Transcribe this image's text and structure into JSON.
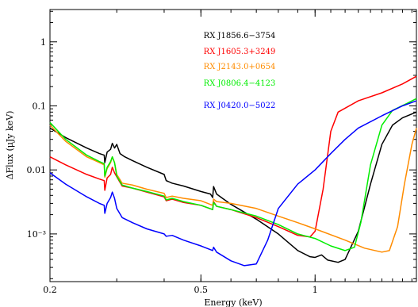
{
  "chart_data": {
    "type": "line",
    "title": "",
    "xlabel": "Energy (keV)",
    "ylabel": "ΔFlux (μJy keV)",
    "xscale": "log",
    "yscale": "log",
    "xlim": [
      0.2,
      1.85
    ],
    "ylim": [
      0.00018,
      3.2
    ],
    "x_ticks": [
      {
        "value": 0.2,
        "label": "0.2"
      },
      {
        "value": 0.5,
        "label": "0.5"
      },
      {
        "value": 1,
        "label": "1"
      }
    ],
    "y_ticks": [
      {
        "value": 0.001,
        "label": "10⁻³"
      },
      {
        "value": 0.01,
        "label": "0.01"
      },
      {
        "value": 0.1,
        "label": "0.1"
      },
      {
        "value": 1,
        "label": "1"
      }
    ],
    "legend_position": "top-center",
    "series": [
      {
        "name": "RX J1856.6−3754",
        "color": "#000000",
        "points": [
          [
            0.2,
            0.045
          ],
          [
            0.22,
            0.032
          ],
          [
            0.25,
            0.022
          ],
          [
            0.27,
            0.018
          ],
          [
            0.278,
            0.017
          ],
          [
            0.279,
            0.013
          ],
          [
            0.283,
            0.019
          ],
          [
            0.289,
            0.021
          ],
          [
            0.292,
            0.026
          ],
          [
            0.296,
            0.022
          ],
          [
            0.3,
            0.025
          ],
          [
            0.306,
            0.018
          ],
          [
            0.315,
            0.016
          ],
          [
            0.33,
            0.014
          ],
          [
            0.36,
            0.011
          ],
          [
            0.4,
            0.0085
          ],
          [
            0.405,
            0.0068
          ],
          [
            0.41,
            0.0066
          ],
          [
            0.42,
            0.0062
          ],
          [
            0.45,
            0.0056
          ],
          [
            0.5,
            0.0046
          ],
          [
            0.53,
            0.0042
          ],
          [
            0.537,
            0.0037
          ],
          [
            0.54,
            0.0055
          ],
          [
            0.55,
            0.0042
          ],
          [
            0.57,
            0.0036
          ],
          [
            0.6,
            0.0029
          ],
          [
            0.7,
            0.0017
          ],
          [
            0.8,
            0.001
          ],
          [
            0.9,
            0.00055
          ],
          [
            0.97,
            0.00044
          ],
          [
            1.0,
            0.00043
          ],
          [
            1.04,
            0.00047
          ],
          [
            1.08,
            0.00039
          ],
          [
            1.15,
            0.00036
          ],
          [
            1.2,
            0.0004
          ],
          [
            1.3,
            0.0011
          ],
          [
            1.4,
            0.006
          ],
          [
            1.5,
            0.025
          ],
          [
            1.6,
            0.05
          ],
          [
            1.7,
            0.065
          ],
          [
            1.85,
            0.08
          ]
        ]
      },
      {
        "name": "RX J1605.3+3249",
        "color": "#ff0000",
        "points": [
          [
            0.2,
            0.016
          ],
          [
            0.22,
            0.012
          ],
          [
            0.25,
            0.0085
          ],
          [
            0.27,
            0.0072
          ],
          [
            0.278,
            0.0068
          ],
          [
            0.279,
            0.0048
          ],
          [
            0.283,
            0.0075
          ],
          [
            0.289,
            0.0085
          ],
          [
            0.292,
            0.011
          ],
          [
            0.296,
            0.009
          ],
          [
            0.3,
            0.0078
          ],
          [
            0.31,
            0.0056
          ],
          [
            0.33,
            0.0052
          ],
          [
            0.36,
            0.0045
          ],
          [
            0.4,
            0.0038
          ],
          [
            0.405,
            0.0033
          ],
          [
            0.42,
            0.0035
          ],
          [
            0.45,
            0.0031
          ],
          [
            0.5,
            0.0028
          ],
          [
            0.537,
            0.0024
          ],
          [
            0.54,
            0.0032
          ],
          [
            0.55,
            0.0027
          ],
          [
            0.6,
            0.0024
          ],
          [
            0.7,
            0.0018
          ],
          [
            0.8,
            0.0013
          ],
          [
            0.9,
            0.00095
          ],
          [
            0.97,
            0.0009
          ],
          [
            1.0,
            0.0011
          ],
          [
            1.05,
            0.005
          ],
          [
            1.1,
            0.04
          ],
          [
            1.15,
            0.08
          ],
          [
            1.3,
            0.12
          ],
          [
            1.5,
            0.16
          ],
          [
            1.7,
            0.22
          ],
          [
            1.85,
            0.29
          ]
        ]
      },
      {
        "name": "RX J2143.0+0654",
        "color": "#ff8c00",
        "points": [
          [
            0.2,
            0.05
          ],
          [
            0.22,
            0.028
          ],
          [
            0.25,
            0.016
          ],
          [
            0.27,
            0.013
          ],
          [
            0.278,
            0.012
          ],
          [
            0.279,
            0.0077
          ],
          [
            0.283,
            0.0105
          ],
          [
            0.289,
            0.013
          ],
          [
            0.292,
            0.016
          ],
          [
            0.296,
            0.013
          ],
          [
            0.3,
            0.0085
          ],
          [
            0.31,
            0.0062
          ],
          [
            0.33,
            0.0058
          ],
          [
            0.36,
            0.005
          ],
          [
            0.4,
            0.0043
          ],
          [
            0.405,
            0.0037
          ],
          [
            0.42,
            0.0039
          ],
          [
            0.45,
            0.0036
          ],
          [
            0.5,
            0.0033
          ],
          [
            0.537,
            0.0028
          ],
          [
            0.54,
            0.0035
          ],
          [
            0.55,
            0.0032
          ],
          [
            0.6,
            0.003
          ],
          [
            0.7,
            0.0025
          ],
          [
            0.8,
            0.0019
          ],
          [
            0.9,
            0.0015
          ],
          [
            1.0,
            0.0012
          ],
          [
            1.2,
            0.0008
          ],
          [
            1.35,
            0.0006
          ],
          [
            1.5,
            0.00052
          ],
          [
            1.57,
            0.00055
          ],
          [
            1.65,
            0.0013
          ],
          [
            1.72,
            0.006
          ],
          [
            1.8,
            0.025
          ],
          [
            1.85,
            0.045
          ]
        ]
      },
      {
        "name": "RX J0806.4−4123",
        "color": "#00ee00",
        "points": [
          [
            0.2,
            0.055
          ],
          [
            0.22,
            0.03
          ],
          [
            0.25,
            0.017
          ],
          [
            0.27,
            0.0135
          ],
          [
            0.278,
            0.0125
          ],
          [
            0.279,
            0.008
          ],
          [
            0.283,
            0.011
          ],
          [
            0.289,
            0.0135
          ],
          [
            0.292,
            0.016
          ],
          [
            0.296,
            0.013
          ],
          [
            0.3,
            0.008
          ],
          [
            0.31,
            0.0058
          ],
          [
            0.33,
            0.0052
          ],
          [
            0.36,
            0.0046
          ],
          [
            0.4,
            0.0039
          ],
          [
            0.405,
            0.0034
          ],
          [
            0.42,
            0.0036
          ],
          [
            0.45,
            0.0032
          ],
          [
            0.5,
            0.0028
          ],
          [
            0.537,
            0.0024
          ],
          [
            0.54,
            0.0031
          ],
          [
            0.55,
            0.0027
          ],
          [
            0.6,
            0.0024
          ],
          [
            0.7,
            0.0019
          ],
          [
            0.8,
            0.0014
          ],
          [
            0.9,
            0.001
          ],
          [
            1.0,
            0.00085
          ],
          [
            1.1,
            0.00065
          ],
          [
            1.2,
            0.00055
          ],
          [
            1.27,
            0.00062
          ],
          [
            1.32,
            0.0015
          ],
          [
            1.4,
            0.012
          ],
          [
            1.5,
            0.05
          ],
          [
            1.6,
            0.085
          ],
          [
            1.75,
            0.11
          ],
          [
            1.85,
            0.13
          ]
        ]
      },
      {
        "name": "RX J0420.0−5022",
        "color": "#0000ff",
        "points": [
          [
            0.2,
            0.009
          ],
          [
            0.22,
            0.006
          ],
          [
            0.25,
            0.0038
          ],
          [
            0.27,
            0.003
          ],
          [
            0.278,
            0.0028
          ],
          [
            0.279,
            0.0021
          ],
          [
            0.283,
            0.003
          ],
          [
            0.289,
            0.0037
          ],
          [
            0.292,
            0.0045
          ],
          [
            0.296,
            0.0036
          ],
          [
            0.3,
            0.0025
          ],
          [
            0.31,
            0.0018
          ],
          [
            0.33,
            0.0015
          ],
          [
            0.36,
            0.0012
          ],
          [
            0.4,
            0.001
          ],
          [
            0.405,
            0.00092
          ],
          [
            0.42,
            0.00095
          ],
          [
            0.45,
            0.0008
          ],
          [
            0.5,
            0.00065
          ],
          [
            0.537,
            0.00055
          ],
          [
            0.54,
            0.00062
          ],
          [
            0.55,
            0.00052
          ],
          [
            0.6,
            0.00038
          ],
          [
            0.65,
            0.00032
          ],
          [
            0.7,
            0.00034
          ],
          [
            0.75,
            0.0008
          ],
          [
            0.8,
            0.0025
          ],
          [
            0.9,
            0.006
          ],
          [
            1.0,
            0.01
          ],
          [
            1.1,
            0.018
          ],
          [
            1.2,
            0.03
          ],
          [
            1.3,
            0.045
          ],
          [
            1.5,
            0.07
          ],
          [
            1.7,
            0.1
          ],
          [
            1.85,
            0.12
          ]
        ]
      }
    ]
  }
}
